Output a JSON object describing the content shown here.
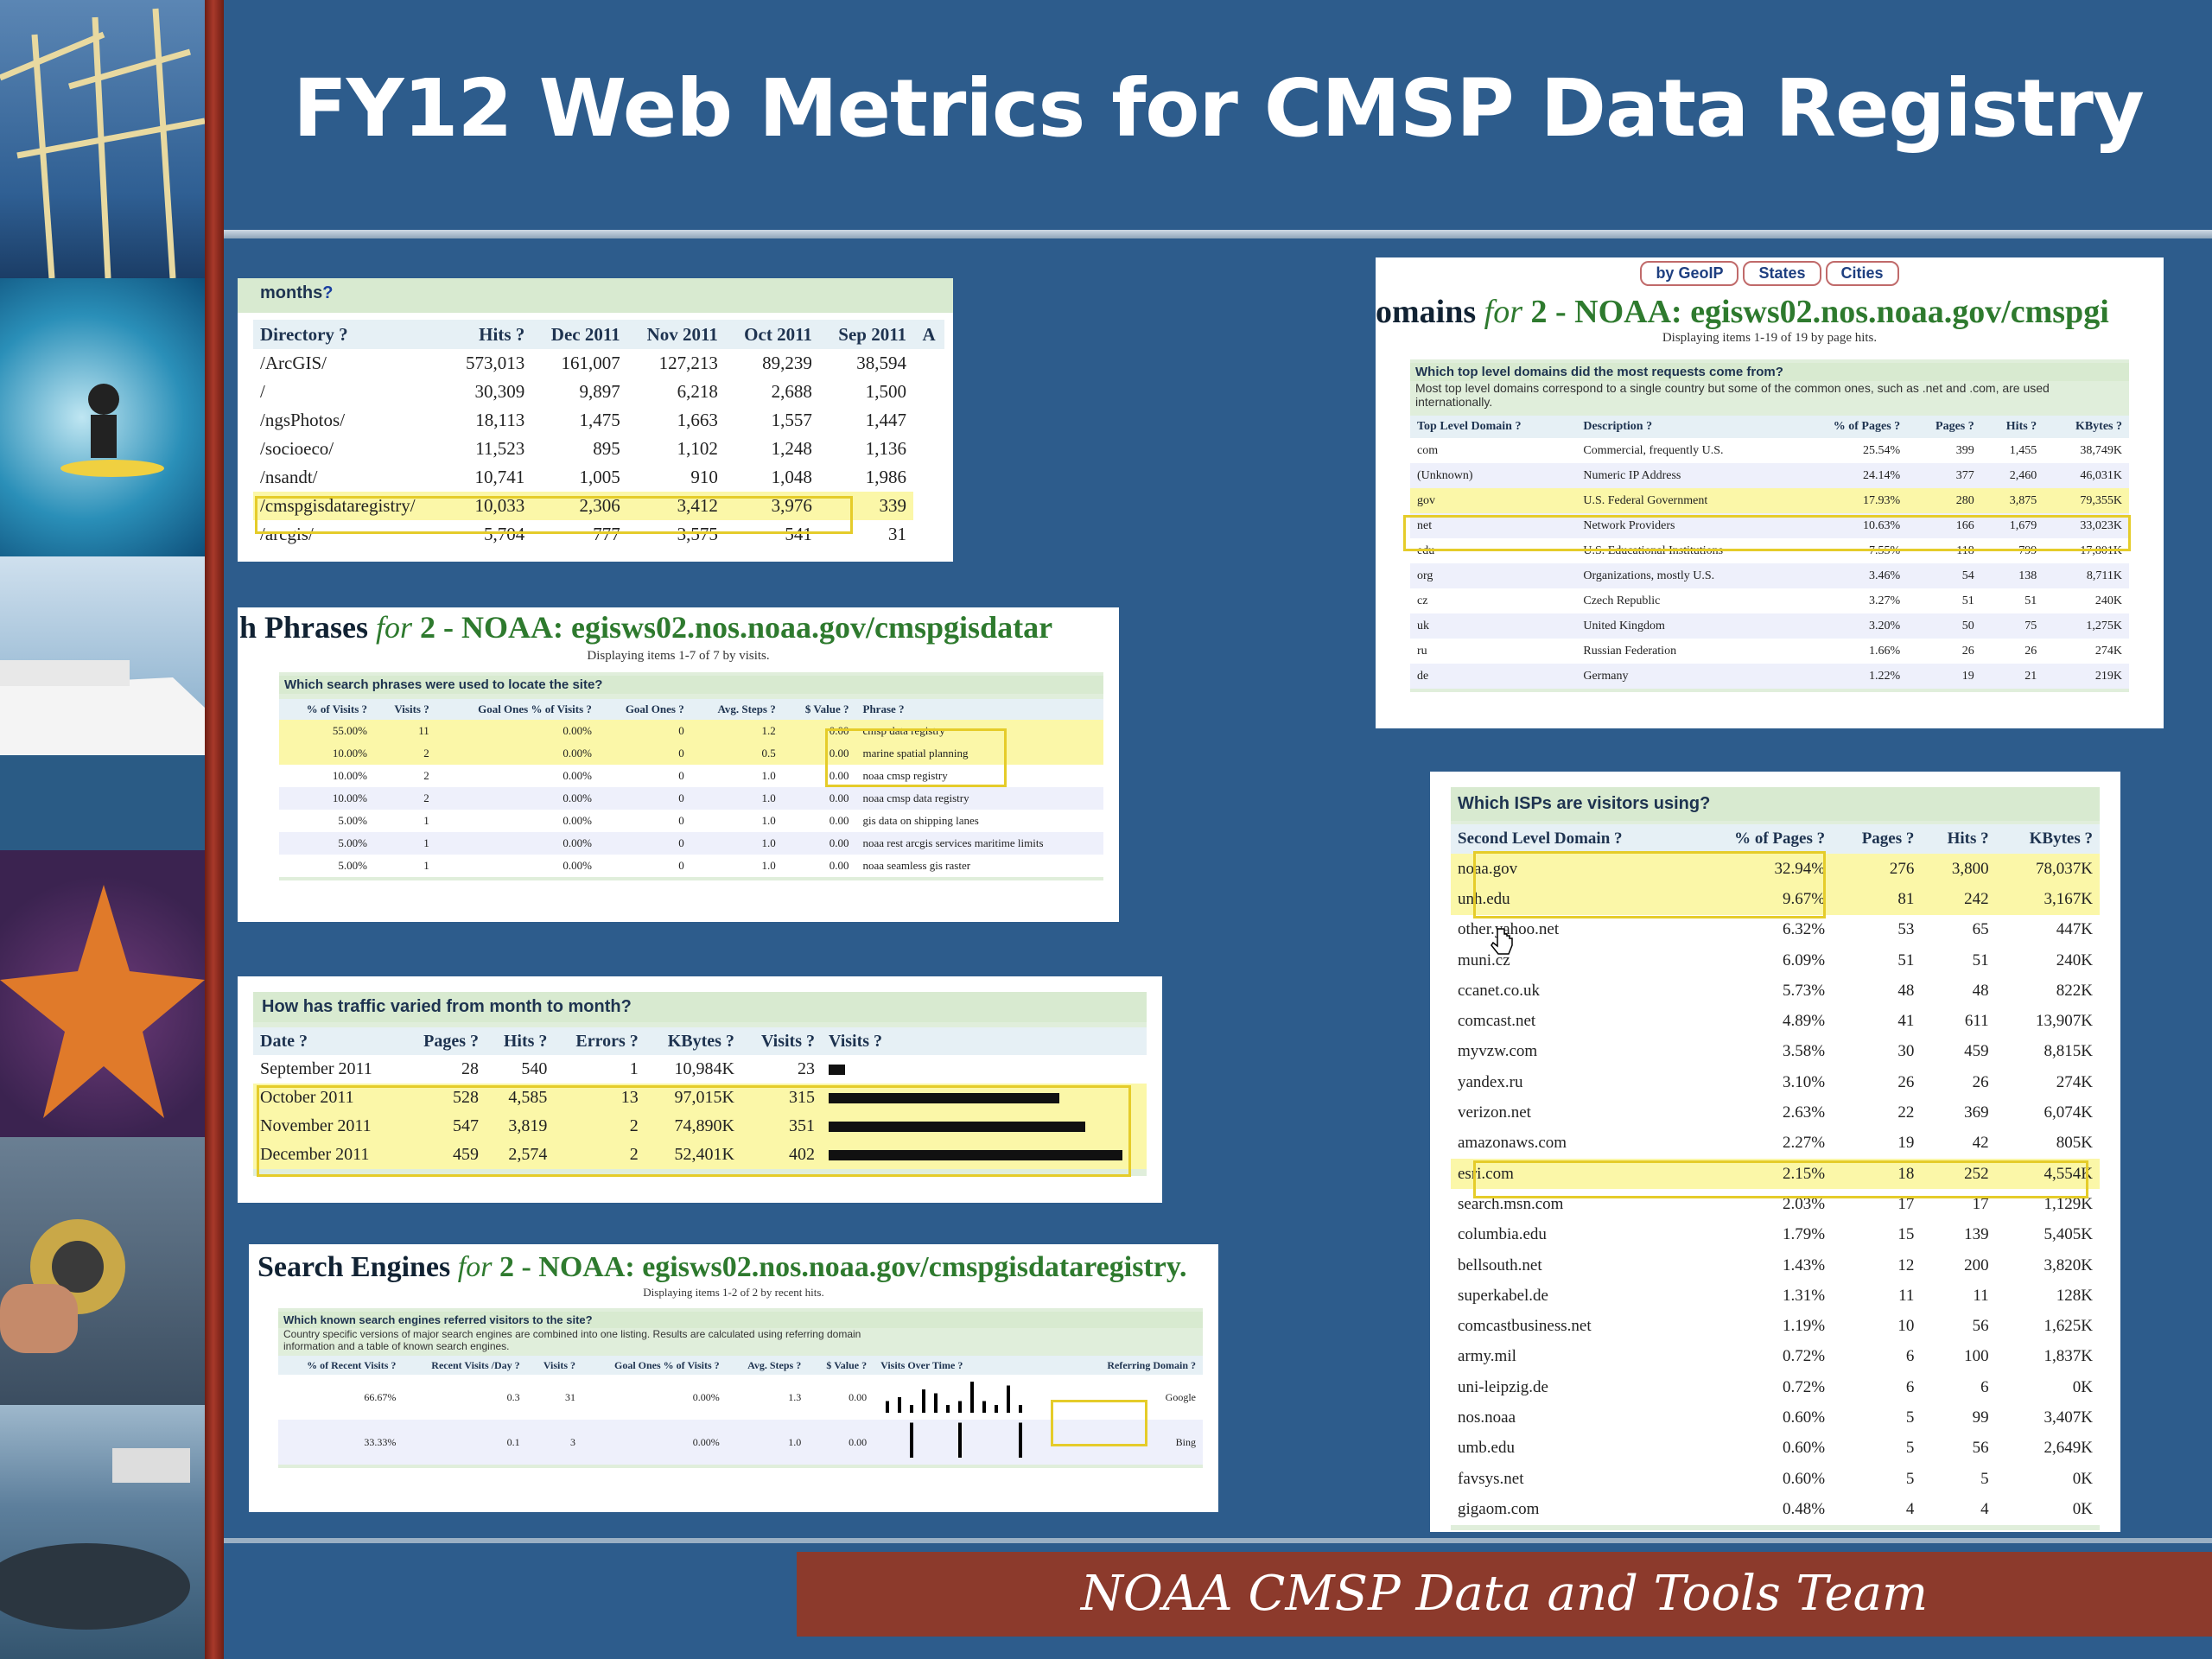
{
  "slide": {
    "title": "FY12 Web Metrics for CMSP Data Registry",
    "footer": "NOAA CMSP Data and Tools Team"
  },
  "directories": {
    "header": "months",
    "help": "?",
    "columns": [
      "Directory ?",
      "Hits ?",
      "Dec 2011",
      "Nov 2011",
      "Oct 2011",
      "Sep 2011",
      "A"
    ],
    "rows": [
      [
        "/ArcGIS/",
        "573,013",
        "161,007",
        "127,213",
        "89,239",
        "38,594"
      ],
      [
        "/",
        "30,309",
        "9,897",
        "6,218",
        "2,688",
        "1,500"
      ],
      [
        "/ngsPhotos/",
        "18,113",
        "1,475",
        "1,663",
        "1,557",
        "1,447"
      ],
      [
        "/socioeco/",
        "11,523",
        "895",
        "1,102",
        "1,248",
        "1,136"
      ],
      [
        "/nsandt/",
        "10,741",
        "1,005",
        "910",
        "1,048",
        "1,986"
      ],
      [
        "/cmspgisdataregistry/",
        "10,033",
        "2,306",
        "3,412",
        "3,976",
        "339"
      ],
      [
        "/arcgis/",
        "5,704",
        "777",
        "3,575",
        "541",
        "31"
      ]
    ]
  },
  "phrases": {
    "title_a": "h Phrases",
    "title_for": "for",
    "title_b": "2 - NOAA: egisws02.nos.noaa.gov/cmspgisdatar",
    "subtitle": "Displaying items 1-7 of 7 by visits.",
    "question": "Which search phrases were used to locate the site?",
    "columns": [
      "% of Visits ?",
      "Visits ?",
      "Goal Ones % of Visits ?",
      "Goal Ones ?",
      "Avg. Steps ?",
      "$ Value ?",
      "Phrase ?"
    ],
    "rows": [
      [
        "55.00%",
        "11",
        "0.00%",
        "0",
        "1.2",
        "0.00",
        "cmsp data registry"
      ],
      [
        "10.00%",
        "2",
        "0.00%",
        "0",
        "0.5",
        "0.00",
        "marine spatial planning"
      ],
      [
        "10.00%",
        "2",
        "0.00%",
        "0",
        "1.0",
        "0.00",
        "noaa cmsp registry"
      ],
      [
        "10.00%",
        "2",
        "0.00%",
        "0",
        "1.0",
        "0.00",
        "noaa cmsp data registry"
      ],
      [
        "5.00%",
        "1",
        "0.00%",
        "0",
        "1.0",
        "0.00",
        "gis data on shipping lanes"
      ],
      [
        "5.00%",
        "1",
        "0.00%",
        "0",
        "1.0",
        "0.00",
        "noaa rest arcgis services maritime limits"
      ],
      [
        "5.00%",
        "1",
        "0.00%",
        "0",
        "1.0",
        "0.00",
        "noaa seamless gis raster"
      ]
    ]
  },
  "traffic": {
    "question": "How has traffic varied from month to month?",
    "columns": [
      "Date ?",
      "Pages ?",
      "Hits ?",
      "Errors ?",
      "KBytes ?",
      "Visits ?",
      "Visits ?"
    ],
    "rows": [
      [
        "September 2011",
        "28",
        "540",
        "1",
        "10,984K",
        "23"
      ],
      [
        "October 2011",
        "528",
        "4,585",
        "13",
        "97,015K",
        "315"
      ],
      [
        "November 2011",
        "547",
        "3,819",
        "2",
        "74,890K",
        "351"
      ],
      [
        "December 2011",
        "459",
        "2,574",
        "2",
        "52,401K",
        "402"
      ]
    ],
    "visit_fraction": [
      0.057,
      0.784,
      0.873,
      1.0
    ]
  },
  "engines": {
    "title_a": "Search Engines",
    "title_for": "for",
    "title_b": "2 - NOAA: egisws02.nos.noaa.gov/cmspgisdataregistry.",
    "subtitle": "Displaying items 1-2 of 2 by recent hits.",
    "question": "Which known search engines referred visitors to the site?",
    "note": "Country specific versions of major search engines are combined into one listing. Results are calculated using referring domain information and a table of known search engines.",
    "columns": [
      "% of Recent Visits ?",
      "Recent Visits /Day ?",
      "Visits ?",
      "Goal Ones % of Visits ?",
      "Avg. Steps ?",
      "$ Value ?",
      "Visits Over Time ?",
      "Referring Domain ?"
    ],
    "rows": [
      [
        "66.67%",
        "0.3",
        "31",
        "0.00%",
        "1.3",
        "0.00",
        "Google"
      ],
      [
        "33.33%",
        "0.1",
        "3",
        "0.00%",
        "1.0",
        "0.00",
        "Bing"
      ]
    ]
  },
  "domains": {
    "tabs": [
      "by GeoIP",
      "States",
      "Cities"
    ],
    "title_a": "omains",
    "title_for": "for",
    "title_b": "2 - NOAA: egisws02.nos.noaa.gov/cmspgi",
    "subtitle": "Displaying items 1-19 of 19 by page hits.",
    "question": "Which top level domains did the most requests come from?",
    "note": "Most top level domains correspond to a single country but some of the common ones, such as .net and .com, are used internationally.",
    "columns": [
      "Top Level Domain ?",
      "Description ?",
      "% of Pages ?",
      "Pages ?",
      "Hits ?",
      "KBytes ?"
    ],
    "rows": [
      [
        "com",
        "Commercial, frequently U.S.",
        "25.54%",
        "399",
        "1,455",
        "38,749K"
      ],
      [
        "(Unknown)",
        "Numeric IP Address",
        "24.14%",
        "377",
        "2,460",
        "46,031K"
      ],
      [
        "gov",
        "U.S. Federal Government",
        "17.93%",
        "280",
        "3,875",
        "79,355K"
      ],
      [
        "net",
        "Network Providers",
        "10.63%",
        "166",
        "1,679",
        "33,023K"
      ],
      [
        "edu",
        "U.S. Educational Institutions",
        "7.55%",
        "118",
        "799",
        "17,801K"
      ],
      [
        "org",
        "Organizations, mostly U.S.",
        "3.46%",
        "54",
        "138",
        "8,711K"
      ],
      [
        "cz",
        "Czech Republic",
        "3.27%",
        "51",
        "51",
        "240K"
      ],
      [
        "uk",
        "United Kingdom",
        "3.20%",
        "50",
        "75",
        "1,275K"
      ],
      [
        "ru",
        "Russian Federation",
        "1.66%",
        "26",
        "26",
        "274K"
      ],
      [
        "de",
        "Germany",
        "1.22%",
        "19",
        "21",
        "219K"
      ]
    ]
  },
  "isps": {
    "question": "Which ISPs are visitors using?",
    "columns": [
      "Second Level Domain ?",
      "% of Pages ?",
      "Pages ?",
      "Hits ?",
      "KBytes ?"
    ],
    "rows": [
      [
        "noaa.gov",
        "32.94%",
        "276",
        "3,800",
        "78,037K"
      ],
      [
        "unh.edu",
        "9.67%",
        "81",
        "242",
        "3,167K"
      ],
      [
        "other.yahoo.net",
        "6.32%",
        "53",
        "65",
        "447K"
      ],
      [
        "muni.cz",
        "6.09%",
        "51",
        "51",
        "240K"
      ],
      [
        "ccanet.co.uk",
        "5.73%",
        "48",
        "48",
        "822K"
      ],
      [
        "comcast.net",
        "4.89%",
        "41",
        "611",
        "13,907K"
      ],
      [
        "myvzw.com",
        "3.58%",
        "30",
        "459",
        "8,815K"
      ],
      [
        "yandex.ru",
        "3.10%",
        "26",
        "26",
        "274K"
      ],
      [
        "verizon.net",
        "2.63%",
        "22",
        "369",
        "6,074K"
      ],
      [
        "amazonaws.com",
        "2.27%",
        "19",
        "42",
        "805K"
      ],
      [
        "esri.com",
        "2.15%",
        "18",
        "252",
        "4,554K"
      ],
      [
        "search.msn.com",
        "2.03%",
        "17",
        "17",
        "1,129K"
      ],
      [
        "columbia.edu",
        "1.79%",
        "15",
        "139",
        "5,405K"
      ],
      [
        "bellsouth.net",
        "1.43%",
        "12",
        "200",
        "3,820K"
      ],
      [
        "superkabel.de",
        "1.31%",
        "11",
        "11",
        "128K"
      ],
      [
        "comcastbusiness.net",
        "1.19%",
        "10",
        "56",
        "1,625K"
      ],
      [
        "army.mil",
        "0.72%",
        "6",
        "100",
        "1,837K"
      ],
      [
        "uni-leipzig.de",
        "0.72%",
        "6",
        "6",
        "0K"
      ],
      [
        "nos.noaa",
        "0.60%",
        "5",
        "99",
        "3,407K"
      ],
      [
        "umb.edu",
        "0.60%",
        "5",
        "56",
        "2,649K"
      ],
      [
        "favsys.net",
        "0.60%",
        "5",
        "5",
        "0K"
      ],
      [
        "gigaom.com",
        "0.48%",
        "4",
        "4",
        "0K"
      ]
    ]
  }
}
